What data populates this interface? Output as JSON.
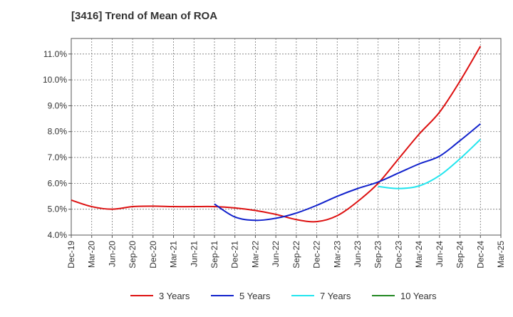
{
  "chart_data": {
    "type": "line",
    "title": "[3416]  Trend of Mean of ROA",
    "xlabel": "",
    "ylabel": "",
    "x_categories": [
      "Dec-19",
      "Mar-20",
      "Jun-20",
      "Sep-20",
      "Dec-20",
      "Mar-21",
      "Jun-21",
      "Sep-21",
      "Dec-21",
      "Mar-22",
      "Jun-22",
      "Sep-22",
      "Dec-22",
      "Mar-23",
      "Jun-23",
      "Sep-23",
      "Dec-23",
      "Mar-24",
      "Jun-24",
      "Sep-24",
      "Dec-24",
      "Mar-25"
    ],
    "y_ticks": [
      "4.0%",
      "5.0%",
      "6.0%",
      "7.0%",
      "8.0%",
      "9.0%",
      "10.0%",
      "11.0%"
    ],
    "ylim": [
      4.0,
      11.6
    ],
    "grid": true,
    "legend_position": "bottom",
    "series": [
      {
        "name": "3 Years",
        "color": "#dd1111",
        "values": [
          5.35,
          5.1,
          5.0,
          5.1,
          5.12,
          5.1,
          5.1,
          5.1,
          5.05,
          4.95,
          4.8,
          4.6,
          4.52,
          4.75,
          5.3,
          6.0,
          6.95,
          7.9,
          8.75,
          9.95,
          11.3,
          null
        ]
      },
      {
        "name": "5 Years",
        "color": "#1122cc",
        "values": [
          null,
          null,
          null,
          null,
          null,
          null,
          null,
          5.2,
          4.7,
          4.57,
          4.65,
          4.85,
          5.15,
          5.5,
          5.8,
          6.05,
          6.4,
          6.75,
          7.05,
          7.65,
          8.3,
          null
        ]
      },
      {
        "name": "7 Years",
        "color": "#22e5ee",
        "values": [
          null,
          null,
          null,
          null,
          null,
          null,
          null,
          null,
          null,
          null,
          null,
          null,
          null,
          null,
          null,
          5.88,
          5.8,
          5.9,
          6.3,
          6.95,
          7.7,
          null
        ]
      },
      {
        "name": "10 Years",
        "color": "#228822",
        "values": [
          null,
          null,
          null,
          null,
          null,
          null,
          null,
          null,
          null,
          null,
          null,
          null,
          null,
          null,
          null,
          null,
          null,
          null,
          null,
          null,
          null,
          null
        ]
      }
    ]
  }
}
